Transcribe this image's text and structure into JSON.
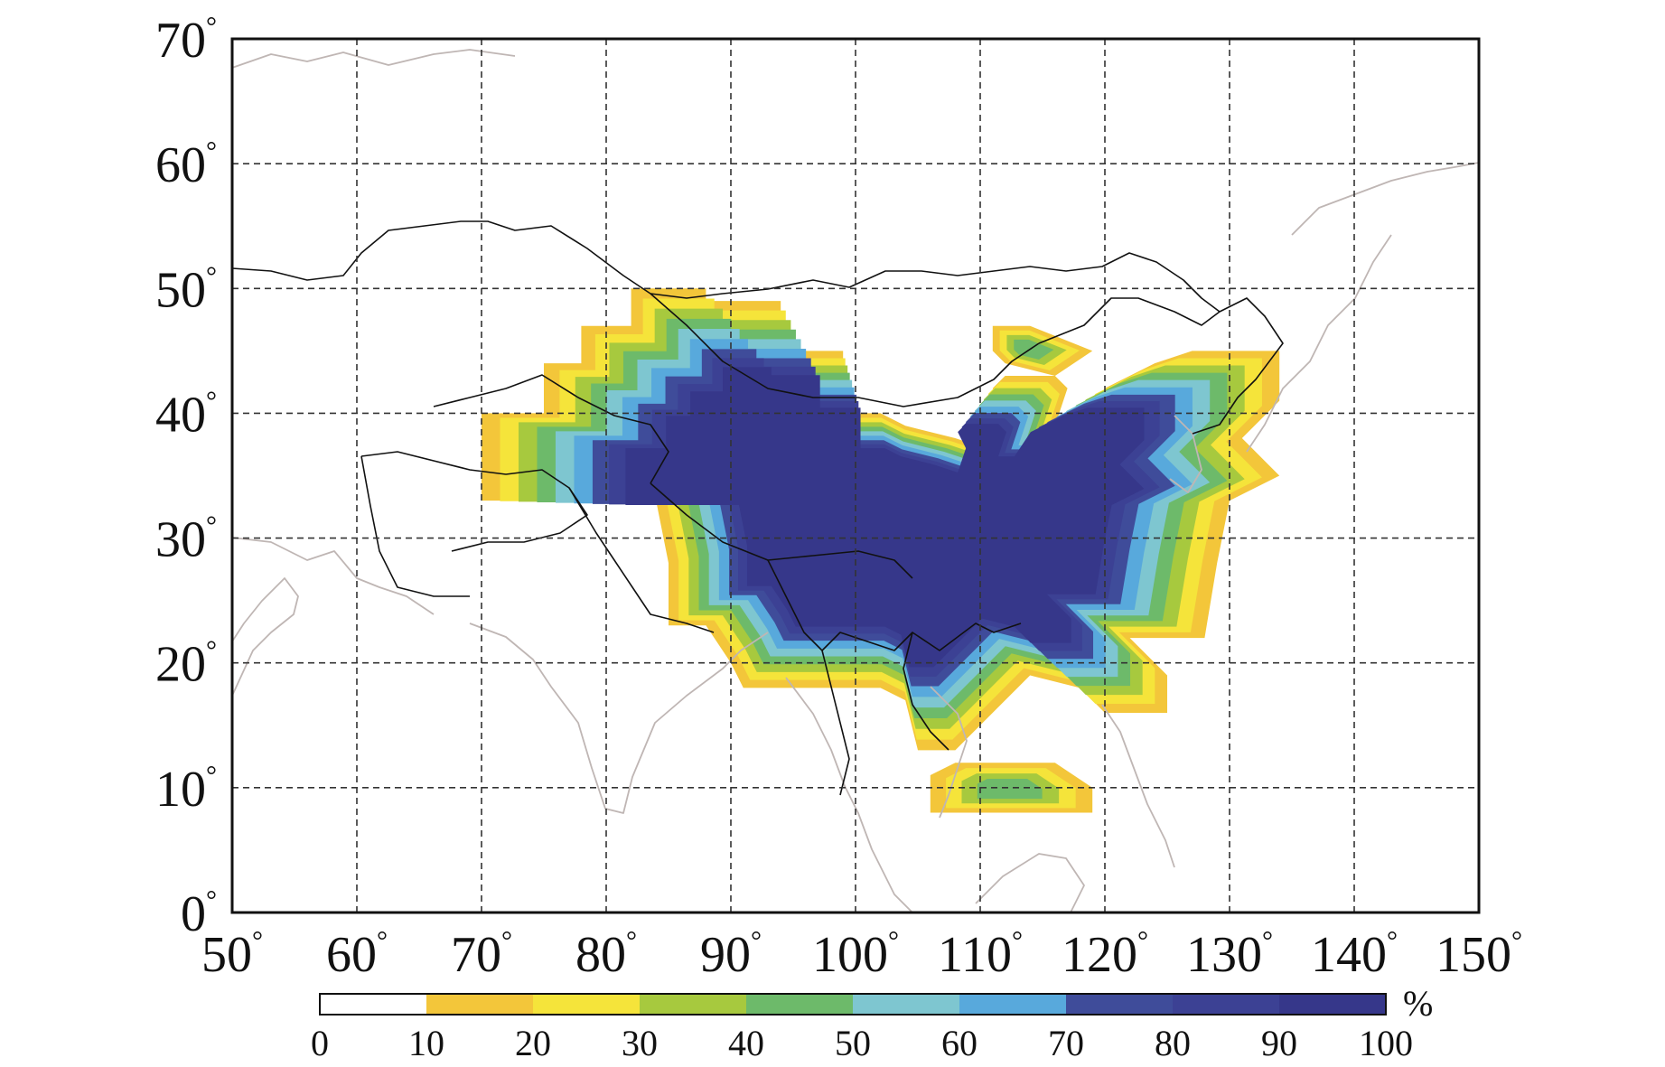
{
  "map": {
    "x_ticks": [
      {
        "value": 50,
        "label": "50"
      },
      {
        "value": 60,
        "label": "60"
      },
      {
        "value": 70,
        "label": "70"
      },
      {
        "value": 80,
        "label": "80"
      },
      {
        "value": 90,
        "label": "90"
      },
      {
        "value": 100,
        "label": "100"
      },
      {
        "value": 110,
        "label": "110"
      },
      {
        "value": 120,
        "label": "120"
      },
      {
        "value": 130,
        "label": "130"
      },
      {
        "value": 140,
        "label": "140"
      },
      {
        "value": 150,
        "label": "150"
      }
    ],
    "y_ticks": [
      {
        "value": 0,
        "label": "0"
      },
      {
        "value": 10,
        "label": "10"
      },
      {
        "value": 20,
        "label": "20"
      },
      {
        "value": 30,
        "label": "30"
      },
      {
        "value": 40,
        "label": "40"
      },
      {
        "value": 50,
        "label": "50"
      },
      {
        "value": 60,
        "label": "60"
      },
      {
        "value": 70,
        "label": "70"
      }
    ],
    "degree_symbol": "°",
    "xlim": [
      50,
      150
    ],
    "ylim": [
      0,
      70
    ],
    "grid": true,
    "grid_style": "dashed"
  },
  "colorbar": {
    "unit": "%",
    "levels": [
      0,
      10,
      20,
      30,
      40,
      50,
      60,
      70,
      80,
      90,
      100
    ],
    "labels": [
      "0",
      "10",
      "20",
      "30",
      "40",
      "50",
      "60",
      "70",
      "80",
      "90",
      "100"
    ],
    "colors": [
      "#ffffff",
      "#f3c63a",
      "#f5e43a",
      "#a7c93e",
      "#6dba6a",
      "#7ec6d0",
      "#58a9dc",
      "#3f4c9a",
      "#3c4194",
      "#36378a"
    ]
  },
  "colors": {
    "border": "#111111",
    "coast": "#bfb6b4",
    "grid": "#333333"
  }
}
